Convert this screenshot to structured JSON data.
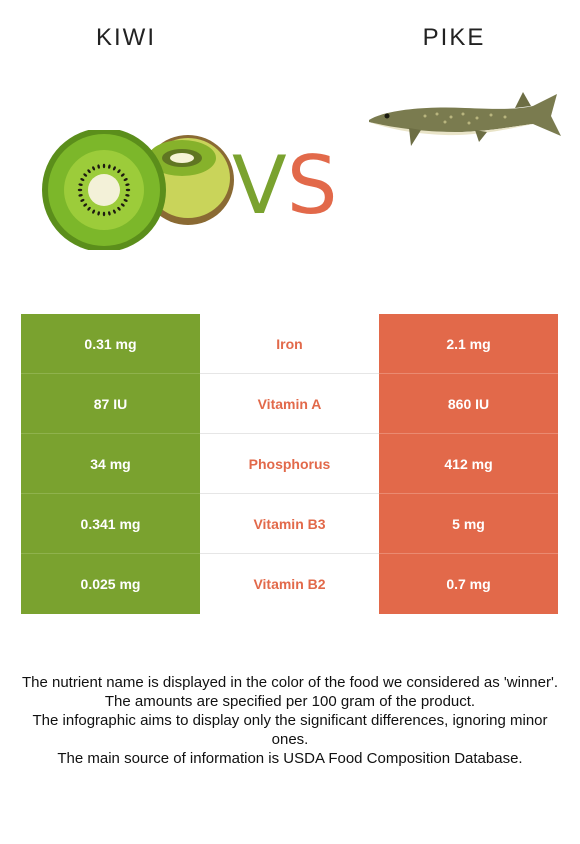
{
  "header": {
    "left_title": "KIWI",
    "right_title": "PIKE",
    "vs_v": "V",
    "vs_s": "S"
  },
  "colors": {
    "winner_left": "#7aa22f",
    "winner_right": "#e2694a"
  },
  "images": {
    "left": "kiwi-fruit-image",
    "right": "pike-fish-image"
  },
  "rows": [
    {
      "left": "0.31 mg",
      "nutrient": "Iron",
      "right": "2.1 mg"
    },
    {
      "left": "87 IU",
      "nutrient": "Vitamin A",
      "right": "860 IU"
    },
    {
      "left": "34 mg",
      "nutrient": "Phosphorus",
      "right": "412 mg"
    },
    {
      "left": "0.341 mg",
      "nutrient": "Vitamin B3",
      "right": "5 mg"
    },
    {
      "left": "0.025 mg",
      "nutrient": "Vitamin B2",
      "right": "0.7 mg"
    }
  ],
  "notes": [
    "The nutrient name is displayed in the color of the food we considered as 'winner'.",
    "The amounts are specified per 100 gram of the product.",
    "The infographic aims to display only the significant differences, ignoring minor ones.",
    "The main source of information is USDA Food Composition Database."
  ]
}
